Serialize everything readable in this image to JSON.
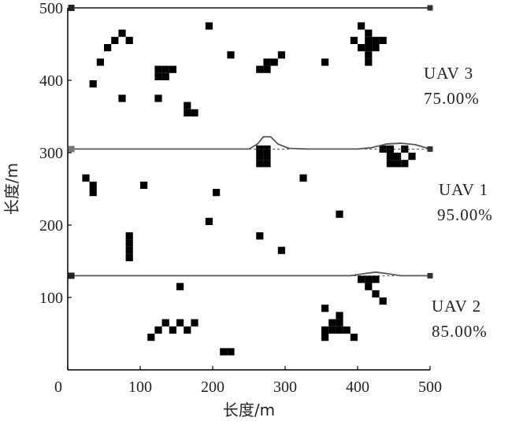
{
  "chart_data": {
    "type": "scatter",
    "title": "",
    "xlabel": "长度/m",
    "ylabel": "长度/m",
    "xlim": [
      0,
      500
    ],
    "ylim": [
      0,
      500
    ],
    "x_ticks": [
      0,
      100,
      200,
      300,
      400,
      500
    ],
    "y_ticks": [
      100,
      200,
      300,
      400,
      500
    ],
    "grid": false,
    "obstacle_cell_size": 10,
    "uav_paths": [
      {
        "label": "UAV 3",
        "coverage": "75.00%",
        "start": [
          5,
          500
        ],
        "end": [
          500,
          500
        ],
        "path": [
          [
            5,
            500
          ],
          [
            500,
            500
          ]
        ]
      },
      {
        "label": "UAV 1",
        "coverage": "95.00%",
        "start": [
          5,
          305
        ],
        "end": [
          500,
          305
        ],
        "path": [
          [
            5,
            305
          ],
          [
            250,
            305
          ],
          [
            262,
            312
          ],
          [
            270,
            322
          ],
          [
            280,
            322
          ],
          [
            290,
            312
          ],
          [
            305,
            306
          ],
          [
            330,
            305
          ],
          [
            400,
            305
          ],
          [
            420,
            307
          ],
          [
            440,
            312
          ],
          [
            460,
            313
          ],
          [
            480,
            311
          ],
          [
            500,
            305
          ]
        ]
      },
      {
        "label": "UAV 2",
        "coverage": "85.00%",
        "start": [
          5,
          130
        ],
        "end": [
          500,
          130
        ],
        "path": [
          [
            5,
            130
          ],
          [
            390,
            130
          ],
          [
            410,
            133
          ],
          [
            425,
            135
          ],
          [
            440,
            133
          ],
          [
            460,
            130
          ],
          [
            500,
            130
          ]
        ]
      }
    ],
    "reference_lines": [
      {
        "points": [
          [
            250,
            305
          ],
          [
            265,
            305
          ],
          [
            290,
            305
          ],
          [
            305,
            305
          ]
        ]
      },
      {
        "points": [
          [
            410,
            305
          ],
          [
            430,
            305
          ],
          [
            480,
            305
          ],
          [
            500,
            305
          ]
        ]
      },
      {
        "points": [
          [
            395,
            130
          ],
          [
            420,
            130
          ],
          [
            450,
            130
          ]
        ]
      }
    ],
    "obstacles": [
      [
        70,
        460
      ],
      [
        60,
        450
      ],
      [
        80,
        450
      ],
      [
        50,
        440
      ],
      [
        40,
        420
      ],
      [
        30,
        390
      ],
      [
        70,
        370
      ],
      [
        190,
        470
      ],
      [
        220,
        430
      ],
      [
        120,
        410
      ],
      [
        130,
        410
      ],
      [
        140,
        410
      ],
      [
        120,
        400
      ],
      [
        130,
        400
      ],
      [
        120,
        370
      ],
      [
        160,
        360
      ],
      [
        160,
        350
      ],
      [
        170,
        350
      ],
      [
        270,
        420
      ],
      [
        280,
        420
      ],
      [
        260,
        410
      ],
      [
        270,
        410
      ],
      [
        290,
        430
      ],
      [
        350,
        420
      ],
      [
        400,
        470
      ],
      [
        410,
        460
      ],
      [
        390,
        450
      ],
      [
        410,
        450
      ],
      [
        420,
        450
      ],
      [
        430,
        450
      ],
      [
        400,
        440
      ],
      [
        410,
        440
      ],
      [
        420,
        440
      ],
      [
        410,
        430
      ],
      [
        410,
        420
      ],
      [
        260,
        300
      ],
      [
        270,
        300
      ],
      [
        260,
        290
      ],
      [
        270,
        290
      ],
      [
        260,
        280
      ],
      [
        270,
        280
      ],
      [
        430,
        300
      ],
      [
        440,
        300
      ],
      [
        460,
        300
      ],
      [
        440,
        290
      ],
      [
        450,
        290
      ],
      [
        470,
        290
      ],
      [
        440,
        280
      ],
      [
        450,
        280
      ],
      [
        460,
        280
      ],
      [
        20,
        260
      ],
      [
        30,
        250
      ],
      [
        30,
        240
      ],
      [
        100,
        250
      ],
      [
        200,
        240
      ],
      [
        320,
        260
      ],
      [
        370,
        210
      ],
      [
        190,
        200
      ],
      [
        260,
        180
      ],
      [
        290,
        160
      ],
      [
        80,
        180
      ],
      [
        80,
        170
      ],
      [
        80,
        160
      ],
      [
        80,
        150
      ],
      [
        400,
        120
      ],
      [
        410,
        120
      ],
      [
        420,
        120
      ],
      [
        410,
        110
      ],
      [
        420,
        100
      ],
      [
        430,
        90
      ],
      [
        150,
        110
      ],
      [
        130,
        60
      ],
      [
        150,
        60
      ],
      [
        170,
        60
      ],
      [
        120,
        50
      ],
      [
        140,
        50
      ],
      [
        160,
        50
      ],
      [
        110,
        40
      ],
      [
        210,
        20
      ],
      [
        220,
        20
      ],
      [
        350,
        80
      ],
      [
        370,
        70
      ],
      [
        360,
        60
      ],
      [
        370,
        60
      ],
      [
        350,
        50
      ],
      [
        360,
        50
      ],
      [
        370,
        50
      ],
      [
        380,
        50
      ],
      [
        350,
        40
      ],
      [
        390,
        40
      ]
    ]
  }
}
